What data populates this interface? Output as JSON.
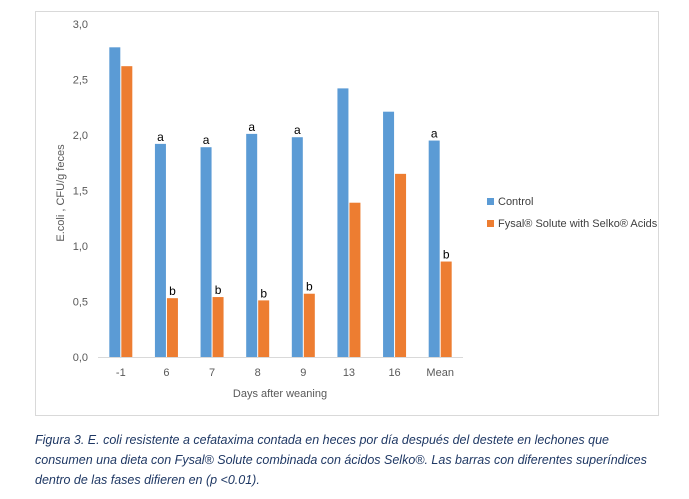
{
  "chart_data": {
    "type": "bar",
    "categories": [
      "-1",
      "6",
      "7",
      "8",
      "9",
      "13",
      "16",
      "Mean"
    ],
    "series": [
      {
        "name": "Control",
        "color": "#5b9bd5",
        "values": [
          2.79,
          1.92,
          1.89,
          2.01,
          1.98,
          2.42,
          2.21,
          1.95
        ],
        "labels": [
          "",
          "a",
          "a",
          "a",
          "a",
          "",
          "",
          "a"
        ]
      },
      {
        "name": "Fysal® Solute with Selko® Acids",
        "color": "#ed7d31",
        "values": [
          2.62,
          0.53,
          0.54,
          0.51,
          0.57,
          1.39,
          1.65,
          0.86
        ],
        "labels": [
          "",
          "b",
          "b",
          "b",
          "b",
          "",
          "",
          "b"
        ]
      }
    ],
    "xlabel": "Days after weaning",
    "ylabel": "E.coli , CFU/g feces",
    "ylim": [
      0,
      3.0
    ],
    "yticks": [
      "0,0",
      "0,5",
      "1,0",
      "1,5",
      "2,0",
      "2,5",
      "3,0"
    ],
    "grid": false,
    "legend_position": "right"
  },
  "caption": "Figura 3. E. coli resistente a cefataxima contada en heces por día después del destete en lechones que consumen una dieta con Fysal® Solute combinada con ácidos Selko®. Las barras con diferentes superíndices dentro de las fases difieren en (p <0.01)."
}
